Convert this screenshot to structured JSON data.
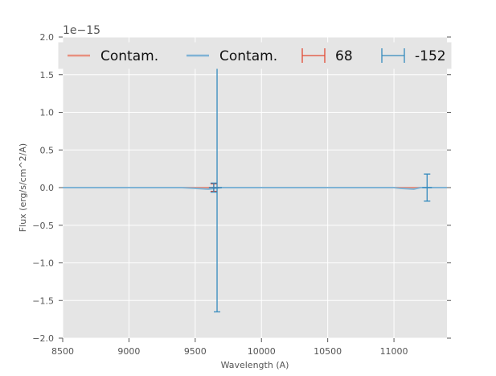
{
  "chart_data": {
    "type": "line",
    "title": "",
    "xlabel": "Wavelength (A)",
    "ylabel": "Flux (erg/s/cm^2/A)",
    "y_offset_text": "1e−15",
    "xlim": [
      8500,
      11400
    ],
    "ylim": [
      -2.0,
      2.0
    ],
    "x_ticks": [
      8500,
      9000,
      9500,
      10000,
      10500,
      11000
    ],
    "x_tick_labels": [
      "8500",
      "9000",
      "9500",
      "10000",
      "10500",
      "11000"
    ],
    "y_ticks": [
      -2.0,
      -1.5,
      -1.0,
      -0.5,
      0.0,
      0.5,
      1.0,
      1.5,
      2.0
    ],
    "y_tick_labels": [
      "−2.0",
      "−1.5",
      "−1.0",
      "−0.5",
      "0.0",
      "0.5",
      "1.0",
      "1.5",
      "2.0"
    ],
    "grid": true,
    "legend_position": "top",
    "colors": {
      "red": "#E24A33",
      "blue": "#348ABD",
      "red_light": "#E8907F",
      "blue_light": "#7FB3D5",
      "background": "#E5E5E5",
      "grid": "#FFFFFF"
    },
    "series": [
      {
        "name": "Contam.",
        "kind": "line",
        "color": "#E8907F",
        "x": [
          8500,
          9000,
          9400,
          9500,
          9600,
          9700,
          10000,
          11000,
          11400
        ],
        "y": [
          0,
          0,
          0,
          0,
          0,
          0,
          0,
          0,
          0
        ]
      },
      {
        "name": "Contam.",
        "kind": "line",
        "color": "#7FB3D5",
        "x": [
          8500,
          9000,
          9400,
          9500,
          9600,
          9700,
          10000,
          11000,
          11050,
          11100,
          11150,
          11200,
          11400
        ],
        "y": [
          0,
          0,
          0,
          -0.01,
          -0.02,
          0,
          0,
          0,
          -0.01,
          -0.015,
          -0.02,
          0,
          0
        ]
      },
      {
        "name": "68",
        "kind": "errorbar",
        "color": "#E24A33",
        "x": [
          9640
        ],
        "y": [
          0.0
        ],
        "yerr": [
          0.05
        ]
      },
      {
        "name": "-152",
        "kind": "errorbar",
        "color": "#348ABD",
        "x": [
          9640,
          9665,
          11250
        ],
        "y": [
          0.0,
          0.0,
          0.0
        ],
        "yerr": [
          0.06,
          1.65,
          0.18
        ]
      }
    ]
  }
}
